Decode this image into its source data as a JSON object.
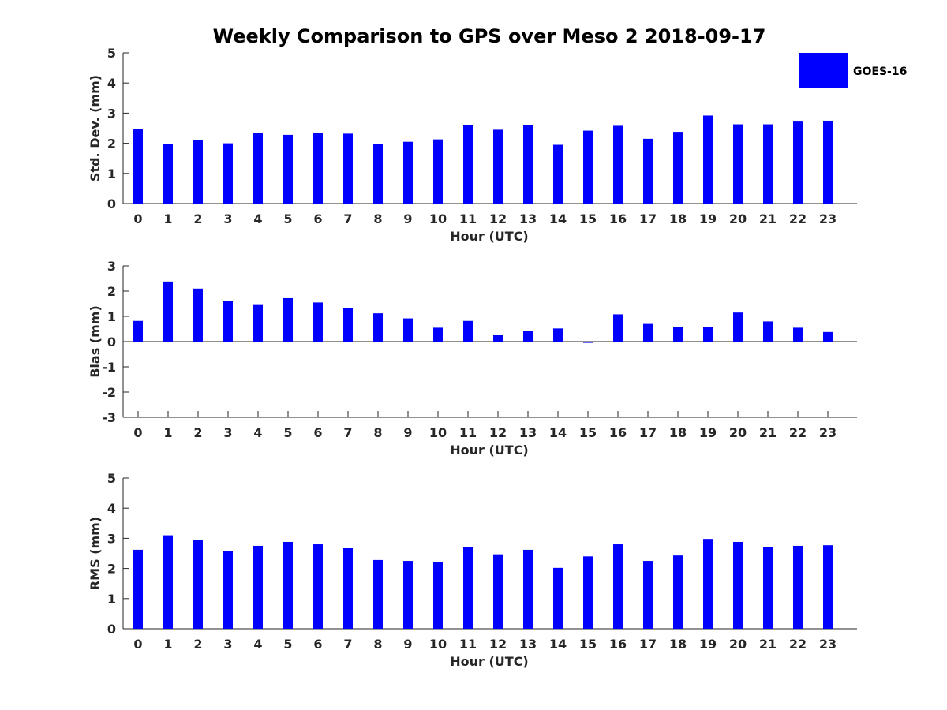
{
  "title": "Weekly Comparison to GPS over Meso 2 2018-09-17",
  "legend": {
    "label": "GOES-16",
    "color": "#0000ff",
    "placement": "top-right"
  },
  "chart_data": [
    {
      "type": "bar",
      "xlabel": "Hour (UTC)",
      "ylabel": "Std. Dev. (mm)",
      "ylim": [
        0,
        5
      ],
      "yticks": [
        "0",
        "1",
        "2",
        "3",
        "4",
        "5"
      ],
      "categories": [
        "0",
        "1",
        "2",
        "3",
        "4",
        "5",
        "6",
        "7",
        "8",
        "9",
        "10",
        "11",
        "12",
        "13",
        "14",
        "15",
        "16",
        "17",
        "18",
        "19",
        "20",
        "21",
        "22",
        "23"
      ],
      "series": [
        {
          "name": "GOES-16",
          "color": "#0000ff",
          "values": [
            2.48,
            1.98,
            2.1,
            2.0,
            2.35,
            2.28,
            2.35,
            2.32,
            1.98,
            2.05,
            2.13,
            2.6,
            2.45,
            2.6,
            1.95,
            2.42,
            2.58,
            2.15,
            2.38,
            2.92,
            2.63,
            2.63,
            2.72,
            2.75
          ]
        }
      ]
    },
    {
      "type": "bar",
      "xlabel": "Hour (UTC)",
      "ylabel": "Bias (mm)",
      "ylim": [
        -3,
        3
      ],
      "yticks": [
        "-3",
        "-2",
        "-1",
        "0",
        "1",
        "2",
        "3"
      ],
      "categories": [
        "0",
        "1",
        "2",
        "3",
        "4",
        "5",
        "6",
        "7",
        "8",
        "9",
        "10",
        "11",
        "12",
        "13",
        "14",
        "15",
        "16",
        "17",
        "18",
        "19",
        "20",
        "21",
        "22",
        "23"
      ],
      "series": [
        {
          "name": "GOES-16",
          "color": "#0000ff",
          "values": [
            0.82,
            2.38,
            2.1,
            1.6,
            1.48,
            1.72,
            1.55,
            1.32,
            1.12,
            0.92,
            0.55,
            0.82,
            0.25,
            0.42,
            0.52,
            -0.05,
            1.08,
            0.7,
            0.58,
            0.58,
            1.15,
            0.8,
            0.55,
            0.38
          ]
        }
      ]
    },
    {
      "type": "bar",
      "xlabel": "Hour (UTC)",
      "ylabel": "RMS (mm)",
      "ylim": [
        0,
        5
      ],
      "yticks": [
        "0",
        "1",
        "2",
        "3",
        "4",
        "5"
      ],
      "categories": [
        "0",
        "1",
        "2",
        "3",
        "4",
        "5",
        "6",
        "7",
        "8",
        "9",
        "10",
        "11",
        "12",
        "13",
        "14",
        "15",
        "16",
        "17",
        "18",
        "19",
        "20",
        "21",
        "22",
        "23"
      ],
      "series": [
        {
          "name": "GOES-16",
          "color": "#0000ff",
          "values": [
            2.62,
            3.1,
            2.95,
            2.57,
            2.75,
            2.88,
            2.8,
            2.67,
            2.28,
            2.25,
            2.2,
            2.72,
            2.47,
            2.62,
            2.02,
            2.4,
            2.8,
            2.25,
            2.43,
            2.98,
            2.88,
            2.72,
            2.75,
            2.77
          ]
        }
      ]
    }
  ]
}
